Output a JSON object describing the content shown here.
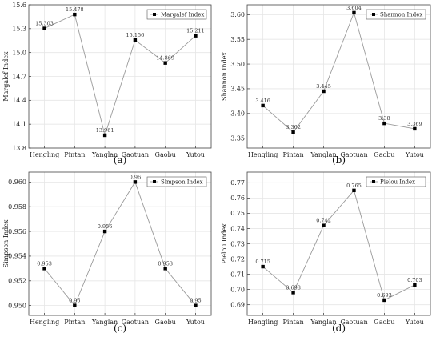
{
  "chart_data": [
    {
      "type": "line",
      "caption": "(a)",
      "categories": [
        "Hengling",
        "Pintan",
        "Yanglan",
        "Gaotuan",
        "Gaobu",
        "Yutou"
      ],
      "series": [
        {
          "name": "Margalef Index",
          "values": [
            15.303,
            15.478,
            13.961,
            15.156,
            14.869,
            15.211
          ]
        }
      ],
      "value_labels": [
        "15.303",
        "15.478",
        "13.961",
        "15.156",
        "14.869",
        "15.211"
      ],
      "ylabel": "Margalef Index",
      "ylim": [
        13.8,
        15.6
      ],
      "yticks": [
        "13.8",
        "14.1",
        "14.4",
        "14.7",
        "15.0",
        "15.3",
        "15.6"
      ],
      "grid": true,
      "legend": "top-right",
      "color": "#9a9a9a"
    },
    {
      "type": "line",
      "caption": "(b)",
      "categories": [
        "Hengling",
        "Pintan",
        "Yanglan",
        "Gaotuan",
        "Gaobu",
        "Yutou"
      ],
      "series": [
        {
          "name": "Shannon Index",
          "values": [
            3.416,
            3.362,
            3.445,
            3.604,
            3.38,
            3.369
          ]
        }
      ],
      "value_labels": [
        "3.416",
        "3.362",
        "3.445",
        "3.604",
        "3.38",
        "3.369"
      ],
      "ylabel": "Shannon Index",
      "ylim": [
        3.33,
        3.62
      ],
      "yticks": [
        "3.35",
        "3.40",
        "3.45",
        "3.50",
        "3.55",
        "3.60"
      ],
      "grid": true,
      "legend": "top-right",
      "color": "#9a9a9a"
    },
    {
      "type": "line",
      "caption": "(c)",
      "categories": [
        "Hengling",
        "Pintan",
        "Yanglan",
        "Gaotuan",
        "Gaobu",
        "Yutou"
      ],
      "series": [
        {
          "name": "Simpson Index",
          "values": [
            0.953,
            0.95,
            0.956,
            0.96,
            0.953,
            0.95
          ]
        }
      ],
      "value_labels": [
        "0.953",
        "0.95",
        "0.956",
        "0.96",
        "0.953",
        "0.95"
      ],
      "ylabel": "Simpson Index",
      "ylim": [
        0.9492,
        0.9608
      ],
      "yticks": [
        "0.950",
        "0.952",
        "0.954",
        "0.956",
        "0.958",
        "0.960"
      ],
      "grid": true,
      "legend": "top-right",
      "color": "#9a9a9a"
    },
    {
      "type": "line",
      "caption": "(d)",
      "categories": [
        "Hengling",
        "Pintan",
        "Yanglan",
        "Gaotuan",
        "Gaobu",
        "Yutou"
      ],
      "series": [
        {
          "name": "Pielou Index",
          "values": [
            0.715,
            0.698,
            0.742,
            0.765,
            0.693,
            0.703
          ]
        }
      ],
      "value_labels": [
        "0.715",
        "0.698",
        "0.742",
        "0.765",
        "0.693",
        "0.703"
      ],
      "ylabel": "Pielou Index",
      "ylim": [
        0.683,
        0.777
      ],
      "yticks": [
        "0.69",
        "0.70",
        "0.71",
        "0.72",
        "0.73",
        "0.74",
        "0.75",
        "0.76",
        "0.77"
      ],
      "grid": true,
      "legend": "top-right",
      "color": "#9a9a9a"
    }
  ]
}
